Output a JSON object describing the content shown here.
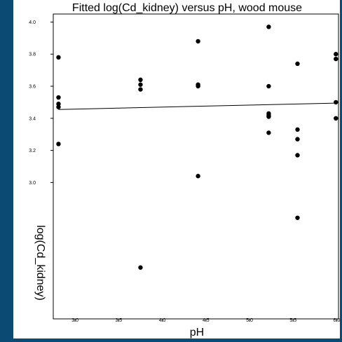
{
  "chart_data": {
    "type": "scatter",
    "title": "Fitted log(Cd_kidney) versus pH, wood mouse",
    "xlabel": "pH",
    "ylabel": "log(Cd_kidney)",
    "xlim": [
      2.75,
      6.02
    ],
    "ylim": [
      2.15,
      4.05
    ],
    "xticks": [
      3.0,
      3.5,
      4.0,
      4.5,
      5.0,
      5.5,
      6.0
    ],
    "xtick_labels": [
      "3.0",
      "3.5",
      "4.0",
      "4.5",
      "5.0",
      "5.5",
      "6.0"
    ],
    "yticks": [
      3.0,
      3.2,
      3.4,
      3.6,
      3.8,
      4.0
    ],
    "ytick_labels": [
      "3.0",
      "3.2",
      "3.4",
      "3.6",
      "3.8",
      "4.0"
    ],
    "grid": false,
    "points": [
      {
        "x": 2.81,
        "y": 3.78
      },
      {
        "x": 2.81,
        "y": 3.53
      },
      {
        "x": 2.81,
        "y": 3.49
      },
      {
        "x": 2.81,
        "y": 3.47
      },
      {
        "x": 2.81,
        "y": 3.24
      },
      {
        "x": 3.75,
        "y": 3.64
      },
      {
        "x": 3.75,
        "y": 3.61
      },
      {
        "x": 3.75,
        "y": 3.58
      },
      {
        "x": 3.75,
        "y": 2.47
      },
      {
        "x": 4.41,
        "y": 3.88
      },
      {
        "x": 4.41,
        "y": 3.61
      },
      {
        "x": 4.41,
        "y": 3.6
      },
      {
        "x": 4.41,
        "y": 3.04
      },
      {
        "x": 5.22,
        "y": 3.97
      },
      {
        "x": 5.22,
        "y": 3.6
      },
      {
        "x": 5.22,
        "y": 3.43
      },
      {
        "x": 5.22,
        "y": 3.42
      },
      {
        "x": 5.22,
        "y": 3.41
      },
      {
        "x": 5.22,
        "y": 3.31
      },
      {
        "x": 5.55,
        "y": 3.74
      },
      {
        "x": 5.55,
        "y": 3.33
      },
      {
        "x": 5.55,
        "y": 3.27
      },
      {
        "x": 5.55,
        "y": 3.17
      },
      {
        "x": 5.55,
        "y": 2.78
      },
      {
        "x": 5.99,
        "y": 3.8
      },
      {
        "x": 5.99,
        "y": 3.77
      },
      {
        "x": 5.99,
        "y": 3.5
      },
      {
        "x": 5.99,
        "y": 3.4
      }
    ],
    "fitted_line": [
      {
        "x": 2.81,
        "y": 3.455
      },
      {
        "x": 5.99,
        "y": 3.495
      }
    ]
  }
}
